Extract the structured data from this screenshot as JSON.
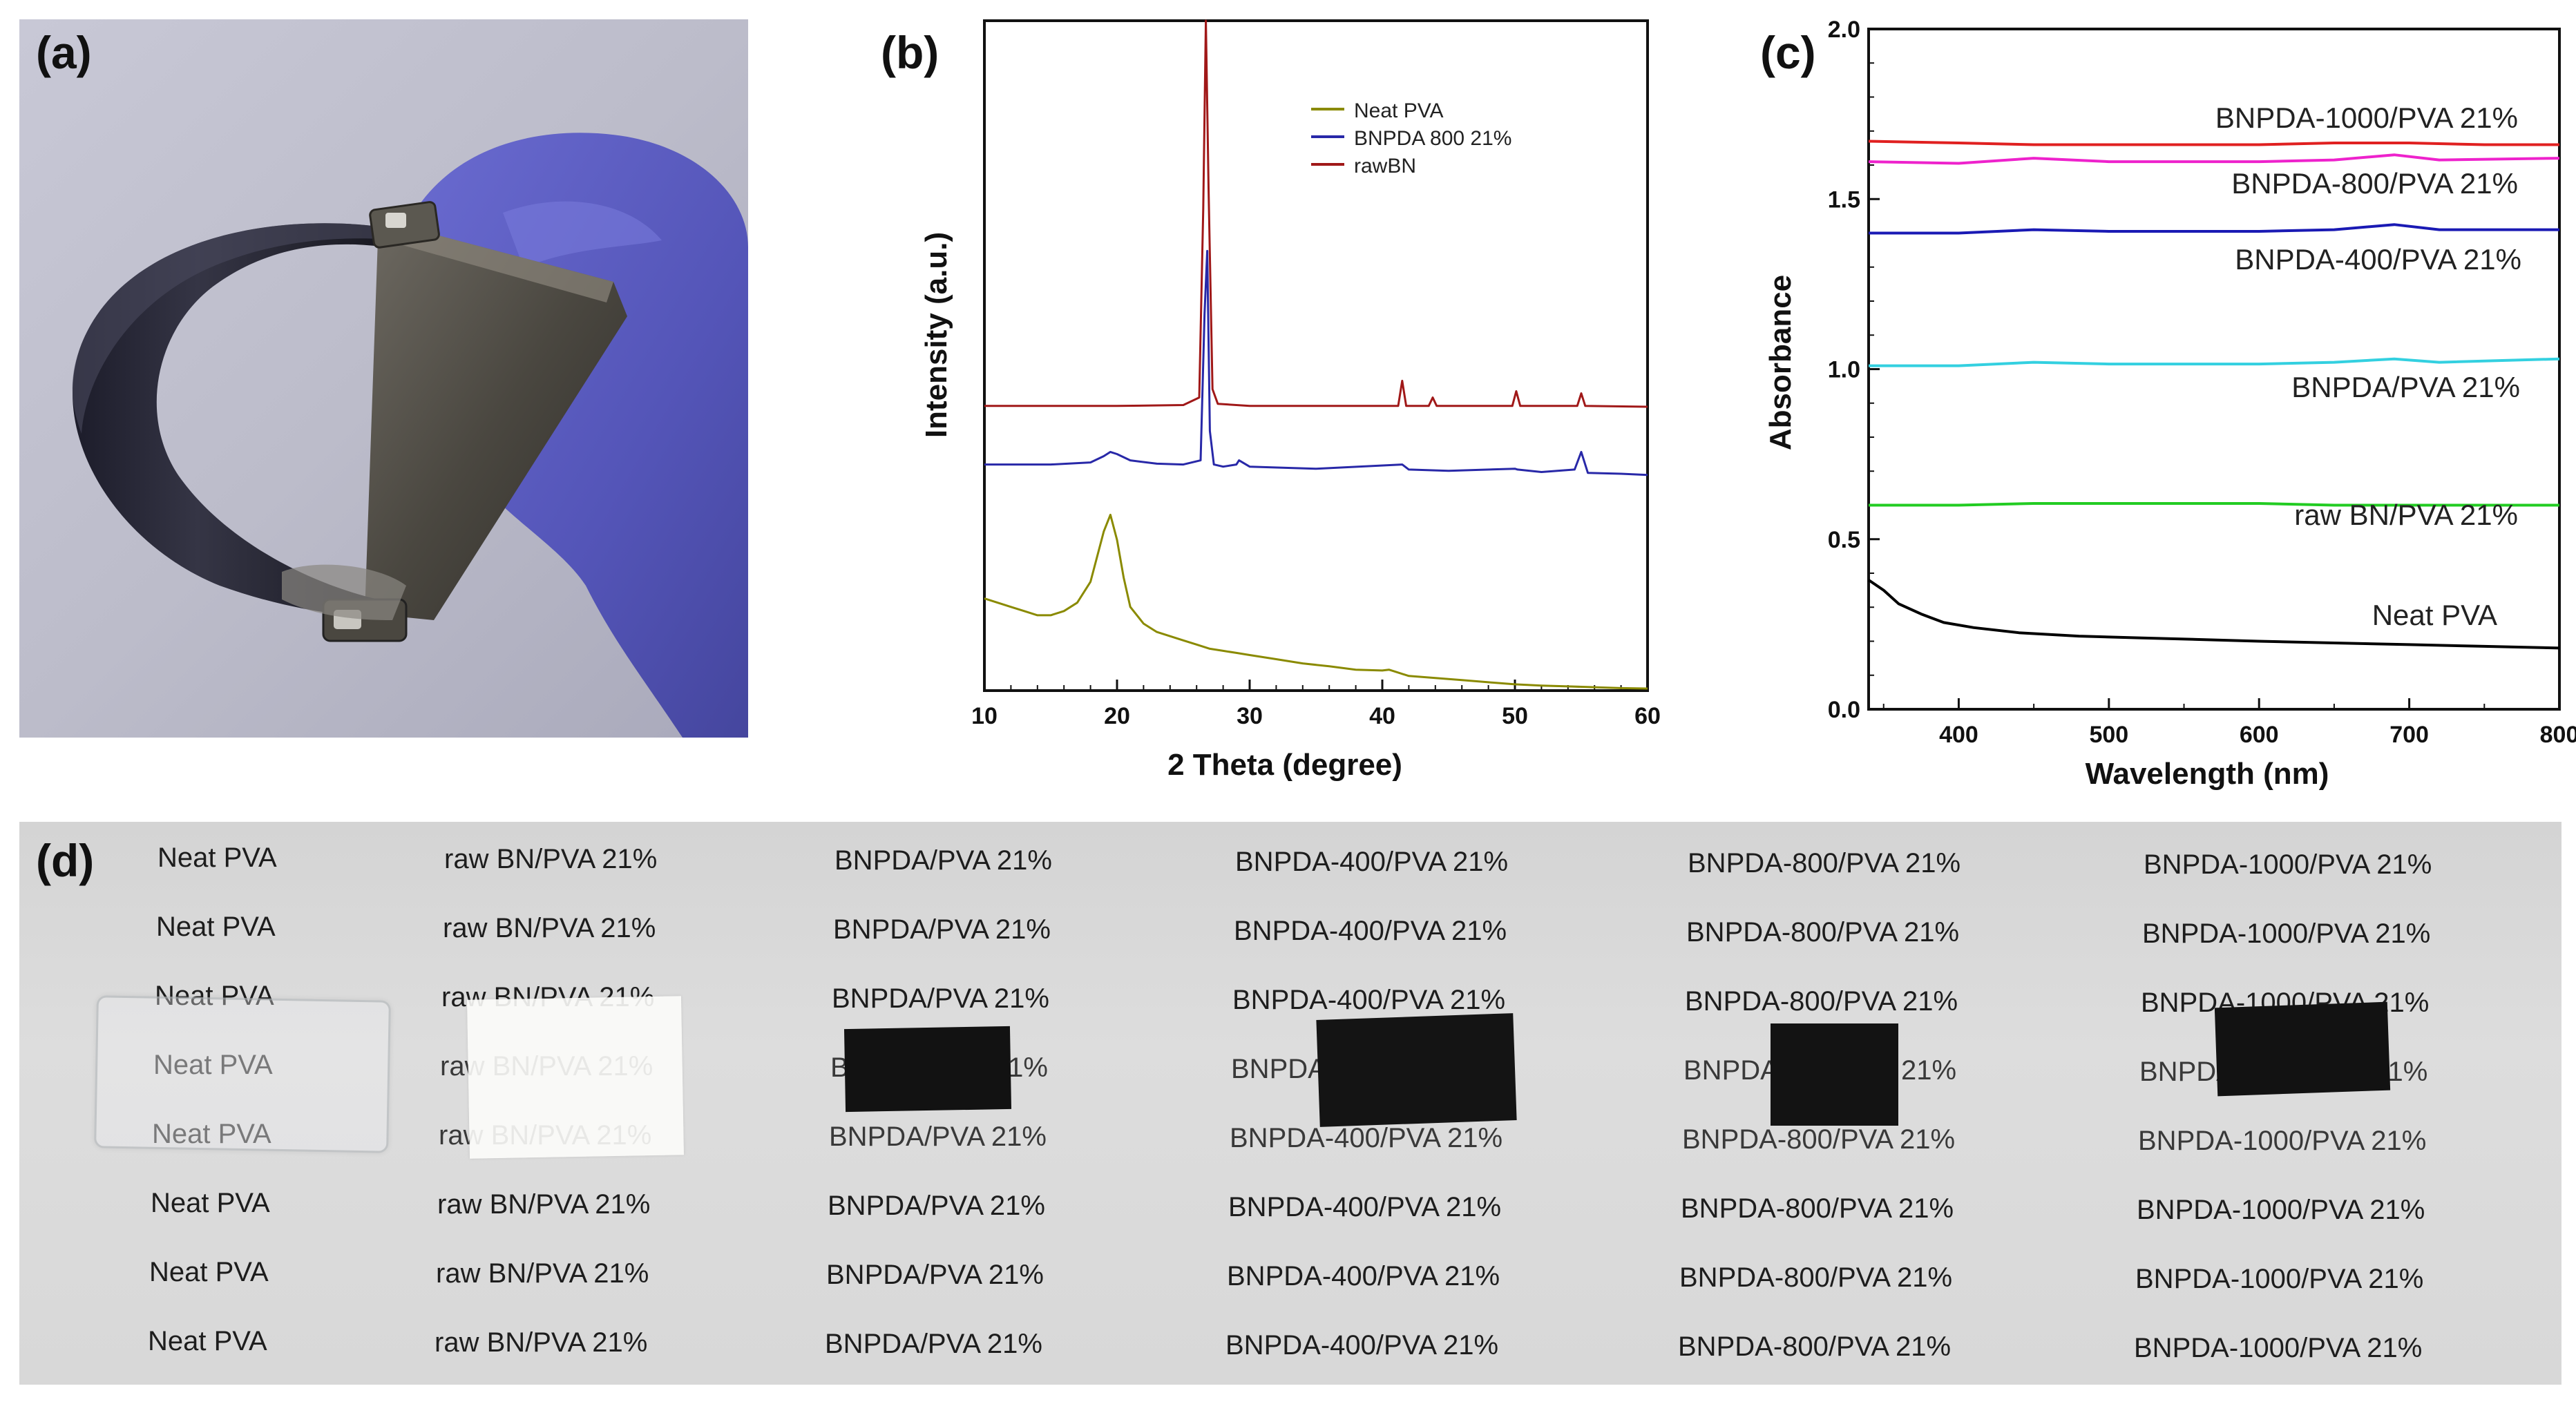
{
  "panels": {
    "a": {
      "label": "(a)"
    },
    "b": {
      "label": "(b)"
    },
    "c": {
      "label": "(c)"
    },
    "d": {
      "label": "(d)"
    }
  },
  "colors": {
    "neat_pva_xrd": "#8a8a00",
    "bnpda_800_xrd": "#2828a8",
    "raw_bn_xrd": "#a01818",
    "uv_neat": "#000000",
    "uv_raw_bn": "#22cc22",
    "uv_bnpda": "#33d0e0",
    "uv_bnpda400": "#1a1ab4",
    "uv_bnpda800": "#ee22cc",
    "uv_bnpda1000": "#e02020",
    "glove": "#5a5bc0",
    "paper": "#dcdcdc"
  },
  "chart_data": [
    {
      "type": "line",
      "panel": "b",
      "title": "",
      "xlabel": "2 Theta (degree)",
      "ylabel": "Intensity (a.u.)",
      "xlim": [
        10,
        60
      ],
      "xticks": [
        10,
        20,
        30,
        40,
        50,
        60
      ],
      "legend": [
        "Neat PVA",
        "BNPDA 800 21%",
        "rawBN"
      ],
      "legend_position": "top-right",
      "series": [
        {
          "name": "Neat PVA",
          "x": [
            10,
            11,
            12,
            13,
            14,
            15,
            16,
            17,
            18,
            18.5,
            19,
            19.5,
            20,
            20.5,
            21,
            22,
            23,
            24,
            25,
            26,
            27,
            28,
            29,
            30,
            32,
            34,
            36,
            38,
            40,
            40.5,
            41,
            42,
            44,
            46,
            48,
            50,
            52,
            54,
            56,
            58,
            60
          ],
          "y": [
            0.22,
            0.21,
            0.2,
            0.19,
            0.18,
            0.18,
            0.19,
            0.21,
            0.26,
            0.32,
            0.38,
            0.42,
            0.36,
            0.27,
            0.2,
            0.16,
            0.14,
            0.13,
            0.12,
            0.11,
            0.1,
            0.095,
            0.09,
            0.085,
            0.075,
            0.065,
            0.058,
            0.05,
            0.048,
            0.05,
            0.045,
            0.035,
            0.03,
            0.025,
            0.02,
            0.015,
            0.012,
            0.01,
            0.008,
            0.006,
            0.005
          ]
        },
        {
          "name": "BNPDA 800 21%",
          "x": [
            10,
            15,
            18,
            19,
            19.5,
            20,
            21,
            23,
            25,
            26.3,
            26.6,
            26.8,
            27,
            27.3,
            28,
            29,
            29.2,
            30,
            35,
            41.5,
            42,
            45,
            50,
            50.2,
            52,
            54.5,
            55,
            55.5,
            58,
            60
          ],
          "y": [
            0.54,
            0.54,
            0.545,
            0.56,
            0.57,
            0.565,
            0.55,
            0.542,
            0.54,
            0.55,
            0.9,
            1.05,
            0.62,
            0.54,
            0.535,
            0.54,
            0.55,
            0.535,
            0.53,
            0.54,
            0.528,
            0.525,
            0.53,
            0.528,
            0.522,
            0.528,
            0.57,
            0.52,
            0.518,
            0.515
          ]
        },
        {
          "name": "rawBN",
          "x": [
            10,
            15,
            20,
            25,
            26.2,
            26.5,
            26.7,
            26.9,
            27.2,
            27.6,
            30,
            35,
            41.2,
            41.5,
            41.8,
            43.5,
            43.8,
            44.1,
            49.8,
            50.1,
            50.4,
            54.7,
            55,
            55.3,
            60
          ],
          "y": [
            0.68,
            0.68,
            0.68,
            0.682,
            0.7,
            1.15,
            1.6,
            1.2,
            0.72,
            0.685,
            0.68,
            0.68,
            0.68,
            0.74,
            0.68,
            0.68,
            0.7,
            0.68,
            0.68,
            0.715,
            0.68,
            0.68,
            0.71,
            0.68,
            0.678
          ]
        }
      ]
    },
    {
      "type": "line",
      "panel": "c",
      "title": "",
      "xlabel": "Wavelength (nm)",
      "ylabel": "Absorbance",
      "xlim": [
        340,
        800
      ],
      "ylim": [
        0,
        2.0
      ],
      "xticks": [
        400,
        500,
        600,
        700,
        800
      ],
      "yticks": [
        0.0,
        0.5,
        1.0,
        1.5,
        2.0
      ],
      "ytick_labels": [
        "0.0",
        "0.5",
        "1.0",
        "1.5",
        "2.0"
      ],
      "series": [
        {
          "name": "BNPDA-1000/PVA 21%",
          "x": [
            340,
            400,
            450,
            500,
            550,
            600,
            650,
            700,
            750,
            800
          ],
          "y": [
            1.67,
            1.665,
            1.66,
            1.66,
            1.66,
            1.66,
            1.665,
            1.665,
            1.66,
            1.66
          ]
        },
        {
          "name": "BNPDA-800/PVA 21%",
          "x": [
            340,
            400,
            450,
            500,
            550,
            600,
            650,
            690,
            720,
            800
          ],
          "y": [
            1.61,
            1.605,
            1.62,
            1.61,
            1.61,
            1.61,
            1.615,
            1.63,
            1.615,
            1.62
          ]
        },
        {
          "name": "BNPDA-400/PVA 21%",
          "x": [
            340,
            400,
            450,
            500,
            550,
            600,
            650,
            690,
            720,
            800
          ],
          "y": [
            1.4,
            1.4,
            1.41,
            1.405,
            1.405,
            1.405,
            1.41,
            1.425,
            1.41,
            1.41
          ]
        },
        {
          "name": "BNPDA/PVA 21%",
          "x": [
            340,
            400,
            450,
            500,
            550,
            600,
            650,
            690,
            720,
            800
          ],
          "y": [
            1.01,
            1.01,
            1.02,
            1.015,
            1.015,
            1.015,
            1.02,
            1.03,
            1.02,
            1.03
          ]
        },
        {
          "name": "raw BN/PVA 21%",
          "x": [
            340,
            400,
            450,
            500,
            550,
            600,
            650,
            700,
            750,
            800
          ],
          "y": [
            0.6,
            0.6,
            0.605,
            0.605,
            0.605,
            0.605,
            0.6,
            0.6,
            0.6,
            0.6
          ]
        },
        {
          "name": "Neat PVA",
          "x": [
            340,
            350,
            360,
            375,
            390,
            410,
            440,
            480,
            520,
            560,
            600,
            650,
            700,
            750,
            800
          ],
          "y": [
            0.38,
            0.35,
            0.31,
            0.28,
            0.255,
            0.24,
            0.225,
            0.215,
            0.21,
            0.205,
            0.2,
            0.195,
            0.19,
            0.185,
            0.18
          ]
        }
      ],
      "annotations": [
        "BNPDA-1000/PVA 21%",
        "BNPDA-800/PVA 21%",
        "BNPDA-400/PVA 21%",
        "BNPDA/PVA 21%",
        "raw BN/PVA 21%",
        "Neat PVA"
      ]
    }
  ],
  "photo_d": {
    "columns": [
      "Neat PVA",
      "raw BN/PVA 21%",
      "BNPDA/PVA 21%",
      "BNPDA-400/PVA 21%",
      "BNPDA-800/PVA 21%",
      "BNPDA-1000/PVA 21%"
    ],
    "rows": 8,
    "samples": [
      {
        "column": "Neat PVA",
        "appearance": "transparent"
      },
      {
        "column": "raw BN/PVA 21%",
        "appearance": "white"
      },
      {
        "column": "BNPDA/PVA 21%",
        "appearance": "black"
      },
      {
        "column": "BNPDA-400/PVA 21%",
        "appearance": "black"
      },
      {
        "column": "BNPDA-800/PVA 21%",
        "appearance": "black"
      },
      {
        "column": "BNPDA-1000/PVA 21%",
        "appearance": "black"
      }
    ]
  }
}
